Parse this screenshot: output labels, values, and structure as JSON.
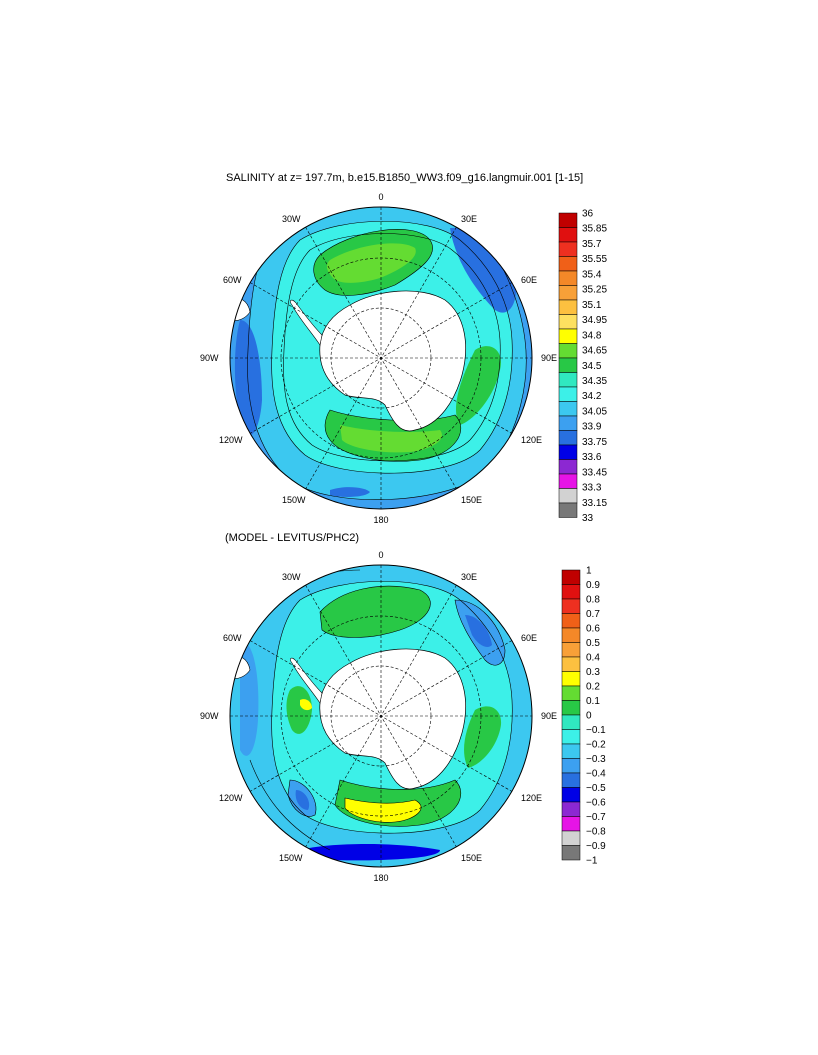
{
  "panels": [
    {
      "title": "SALINITY at z= 197.7m, b.e15.B1850_WW3.f09_g16.langmuir.001 [1-15]",
      "lon_labels": {
        "0": "0",
        "30E": "30E",
        "60E": "60E",
        "90E": "90E",
        "120E": "120E",
        "150E": "150E",
        "180": "180",
        "150W": "150W",
        "120W": "120W",
        "90W": "90W",
        "60W": "60W",
        "30W": "30W"
      },
      "colorbar": {
        "labels": [
          "36",
          "35.85",
          "35.7",
          "35.55",
          "35.4",
          "35.25",
          "35.1",
          "34.95",
          "34.8",
          "34.65",
          "34.5",
          "34.35",
          "34.2",
          "34.05",
          "33.9",
          "33.75",
          "33.6",
          "33.45",
          "33.3",
          "33.15",
          "33"
        ],
        "colors": [
          "#c00000",
          "#e01010",
          "#ee3020",
          "#f06018",
          "#f48828",
          "#f8a038",
          "#fcc040",
          "#fde060",
          "#ffff00",
          "#64dc32",
          "#28c846",
          "#30e8c0",
          "#3cf0e8",
          "#3cc8f0",
          "#3ca0f0",
          "#2870e0",
          "#0000e6",
          "#8c28d2",
          "#e614e6",
          "#d2d2d2",
          "#787878"
        ]
      }
    },
    {
      "title": "(MODEL - LEVITUS/PHC2)",
      "lon_labels": {
        "0": "0",
        "30E": "30E",
        "60E": "60E",
        "90E": "90E",
        "120E": "120E",
        "150E": "150E",
        "180": "180",
        "150W": "150W",
        "120W": "120W",
        "90W": "90W",
        "60W": "60W",
        "30W": "30W"
      },
      "colorbar": {
        "labels": [
          "1",
          "0.9",
          "0.8",
          "0.7",
          "0.6",
          "0.5",
          "0.4",
          "0.3",
          "0.2",
          "0.1",
          "0",
          "−0.1",
          "−0.2",
          "−0.3",
          "−0.4",
          "−0.5",
          "−0.6",
          "−0.7",
          "−0.8",
          "−0.9",
          "−1"
        ],
        "colors": [
          "#c00000",
          "#e01010",
          "#ee3020",
          "#f06018",
          "#f48828",
          "#f8a038",
          "#fcc040",
          "#ffff00",
          "#64dc32",
          "#28c846",
          "#30e8c0",
          "#3cf0e8",
          "#3cc8f0",
          "#3ca0f0",
          "#2870e0",
          "#0000e6",
          "#8c28d2",
          "#e614e6",
          "#d2d2d2",
          "#787878"
        ]
      }
    }
  ]
}
